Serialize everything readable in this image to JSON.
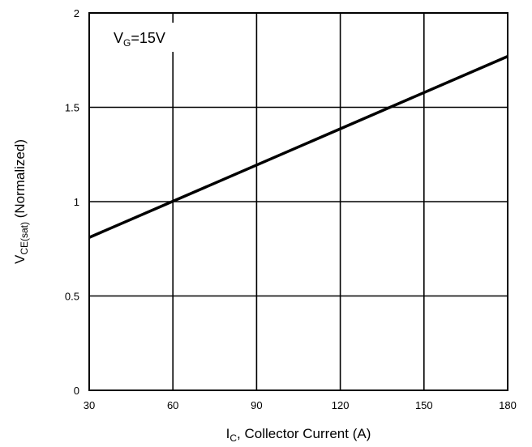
{
  "chart_data": {
    "type": "line",
    "title": "",
    "annotation": {
      "main": "V",
      "sub": "G",
      "rest": "=15V"
    },
    "xlabel": {
      "main": "I",
      "sub": "C",
      "rest": ", Collector Current (A)"
    },
    "ylabel": {
      "main": "V",
      "sub": "CE(sat)",
      "rest": " (Normalized)"
    },
    "xlim": [
      30,
      180
    ],
    "ylim": [
      0,
      2
    ],
    "x_ticks": [
      "30",
      "60",
      "90",
      "120",
      "150",
      "180"
    ],
    "y_ticks": [
      "0",
      "0.5",
      "1",
      "1.5",
      "2"
    ],
    "grid": true,
    "series": [
      {
        "x": [
          30,
          180
        ],
        "y": [
          0.81,
          1.77
        ],
        "color": "#000000"
      }
    ]
  }
}
